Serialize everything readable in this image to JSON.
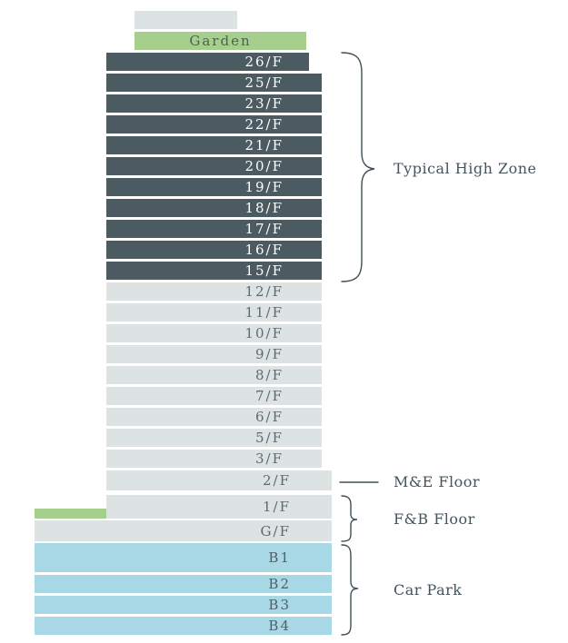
{
  "garden_label": "Garden",
  "floors_high": [
    "26/F",
    "25/F",
    "23/F",
    "22/F",
    "21/F",
    "20/F",
    "19/F",
    "18/F",
    "17/F",
    "16/F",
    "15/F"
  ],
  "floors_mid": [
    "12/F",
    "11/F",
    "10/F",
    "9/F",
    "8/F",
    "7/F",
    "6/F",
    "5/F",
    "3/F"
  ],
  "floor_me": "2/F",
  "floors_fb": [
    "1/F",
    "G/F"
  ],
  "floors_basement": [
    "B1",
    "B2",
    "B3",
    "B4"
  ],
  "zones": {
    "high": "Typical High Zone",
    "me": "M&E Floor",
    "fb": "F&B Floor",
    "car": "Car Park"
  },
  "colors": {
    "high_zone": "#4b5b61",
    "standard": "#dde2e3",
    "garden": "#a6cf8e",
    "basement": "#a8d8e6"
  }
}
